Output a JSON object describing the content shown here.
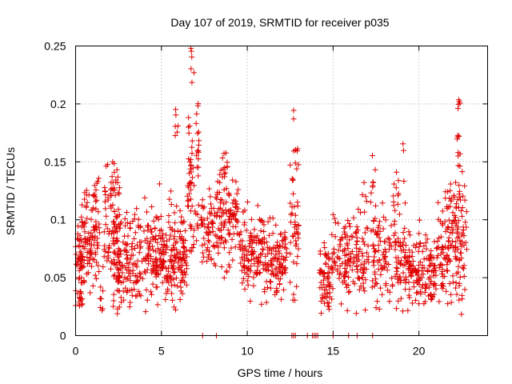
{
  "chart_data": {
    "type": "scatter",
    "title": "Day 107 of 2019, SRMTID for receiver p035",
    "xlabel": "GPS time / hours",
    "ylabel": "SRMTID / TECUs",
    "xlim": [
      0,
      24
    ],
    "ylim": [
      0,
      0.25
    ],
    "x_ticks": [
      "0",
      "5",
      "10",
      "15",
      "20"
    ],
    "x_tick_values": [
      0,
      5,
      10,
      15,
      20
    ],
    "y_ticks": [
      "0",
      "0.05",
      "0.1",
      "0.15",
      "0.2",
      "0.25"
    ],
    "y_tick_values": [
      0,
      0.05,
      0.1,
      0.15,
      0.2,
      0.25
    ],
    "grid": true,
    "marker": "plus",
    "color": "#e00000",
    "series": [
      {
        "name": "SRMTID",
        "clusters": [
          {
            "x_start": 0.0,
            "x_end": 0.5,
            "y_mean": 0.065,
            "y_spread": 0.02,
            "count": 60
          },
          {
            "x_start": 0.2,
            "x_end": 0.4,
            "y_mean": 0.035,
            "y_spread": 0.008,
            "count": 12
          },
          {
            "x_start": 0.5,
            "x_end": 1.4,
            "y_mean": 0.085,
            "y_spread": 0.02,
            "count": 80
          },
          {
            "x_start": 1.0,
            "x_end": 1.4,
            "y_mean": 0.12,
            "y_spread": 0.012,
            "count": 12
          },
          {
            "x_start": 1.4,
            "x_end": 1.6,
            "y_mean": 0.03,
            "y_spread": 0.006,
            "count": 8
          },
          {
            "x_start": 1.6,
            "x_end": 2.6,
            "y_mean": 0.09,
            "y_spread": 0.025,
            "count": 90
          },
          {
            "x_start": 2.0,
            "x_end": 2.5,
            "y_mean": 0.13,
            "y_spread": 0.012,
            "count": 18
          },
          {
            "x_start": 2.4,
            "x_end": 4.0,
            "y_mean": 0.065,
            "y_spread": 0.02,
            "count": 130
          },
          {
            "x_start": 4.0,
            "x_end": 5.2,
            "y_mean": 0.07,
            "y_spread": 0.02,
            "count": 110
          },
          {
            "x_start": 5.0,
            "x_end": 6.5,
            "y_mean": 0.06,
            "y_spread": 0.015,
            "count": 120
          },
          {
            "x_start": 5.4,
            "x_end": 6.4,
            "y_mean": 0.09,
            "y_spread": 0.015,
            "count": 30
          },
          {
            "x_start": 5.8,
            "x_end": 6.0,
            "y_mean": 0.185,
            "y_spread": 0.01,
            "count": 6
          },
          {
            "x_start": 6.5,
            "x_end": 7.2,
            "y_mean": 0.13,
            "y_spread": 0.03,
            "count": 60
          },
          {
            "x_start": 6.7,
            "x_end": 6.9,
            "y_mean": 0.235,
            "y_spread": 0.01,
            "count": 6
          },
          {
            "x_start": 7.0,
            "x_end": 7.2,
            "y_mean": 0.175,
            "y_spread": 0.015,
            "count": 8
          },
          {
            "x_start": 7.3,
            "x_end": 8.2,
            "y_mean": 0.09,
            "y_spread": 0.02,
            "count": 60
          },
          {
            "x_start": 8.2,
            "x_end": 9.5,
            "y_mean": 0.1,
            "y_spread": 0.02,
            "count": 110
          },
          {
            "x_start": 8.5,
            "x_end": 9.0,
            "y_mean": 0.145,
            "y_spread": 0.008,
            "count": 10
          },
          {
            "x_start": 9.5,
            "x_end": 11.0,
            "y_mean": 0.075,
            "y_spread": 0.02,
            "count": 120
          },
          {
            "x_start": 11.0,
            "x_end": 12.3,
            "y_mean": 0.065,
            "y_spread": 0.015,
            "count": 110
          },
          {
            "x_start": 12.5,
            "x_end": 13.0,
            "y_mean": 0.095,
            "y_spread": 0.035,
            "count": 45
          },
          {
            "x_start": 12.8,
            "x_end": 13.0,
            "y_mean": 0.155,
            "y_spread": 0.008,
            "count": 6
          },
          {
            "x_start": 14.2,
            "x_end": 14.9,
            "y_mean": 0.05,
            "y_spread": 0.015,
            "count": 60
          },
          {
            "x_start": 14.9,
            "x_end": 16.2,
            "y_mean": 0.07,
            "y_spread": 0.02,
            "count": 90
          },
          {
            "x_start": 16.2,
            "x_end": 17.5,
            "y_mean": 0.07,
            "y_spread": 0.025,
            "count": 90
          },
          {
            "x_start": 17.2,
            "x_end": 17.5,
            "y_mean": 0.13,
            "y_spread": 0.012,
            "count": 8
          },
          {
            "x_start": 17.5,
            "x_end": 19.5,
            "y_mean": 0.065,
            "y_spread": 0.02,
            "count": 140
          },
          {
            "x_start": 18.5,
            "x_end": 19.2,
            "y_mean": 0.125,
            "y_spread": 0.015,
            "count": 14
          },
          {
            "x_start": 19.5,
            "x_end": 21.0,
            "y_mean": 0.055,
            "y_spread": 0.015,
            "count": 120
          },
          {
            "x_start": 21.0,
            "x_end": 22.0,
            "y_mean": 0.075,
            "y_spread": 0.02,
            "count": 80
          },
          {
            "x_start": 21.5,
            "x_end": 21.9,
            "y_mean": 0.12,
            "y_spread": 0.01,
            "count": 10
          },
          {
            "x_start": 22.0,
            "x_end": 22.8,
            "y_mean": 0.085,
            "y_spread": 0.025,
            "count": 80
          },
          {
            "x_start": 22.2,
            "x_end": 22.4,
            "y_mean": 0.175,
            "y_spread": 0.03,
            "count": 16
          }
        ],
        "zero_points_x": [
          7.4,
          8.2,
          12.6,
          12.7,
          12.8,
          13.5,
          13.8,
          13.9,
          14.0,
          14.1,
          15.0,
          15.9,
          16.4,
          17.3
        ]
      }
    ]
  }
}
